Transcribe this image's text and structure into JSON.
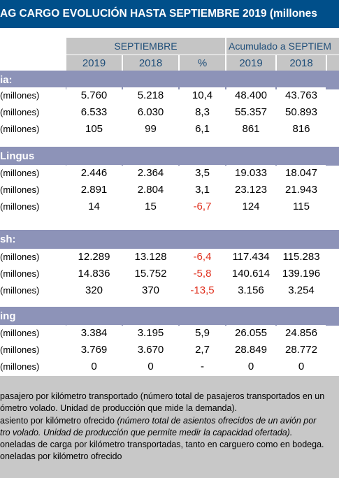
{
  "title": "AG CARGO EVOLUCIÓN HASTA SEPTIEMBRE 2019 (millones",
  "header": {
    "group1": "SEPTIEMBRE",
    "group2": "Acumulado a SEPTIEM",
    "years": [
      "2019",
      "2018",
      "%",
      "2019",
      "2018"
    ]
  },
  "sections": [
    {
      "name": "ia:",
      "rows": [
        {
          "label": "(millones)",
          "values": [
            "5.760",
            "5.218",
            "10,4",
            "48.400",
            "43.763"
          ],
          "neg": false
        },
        {
          "label": "(millones)",
          "values": [
            "6.533",
            "6.030",
            "8,3",
            "55.357",
            "50.893"
          ],
          "neg": false
        },
        {
          "label": "(millones)",
          "values": [
            "105",
            "99",
            "6,1",
            "861",
            "816"
          ],
          "neg": false
        }
      ]
    },
    {
      "name": "Lingus",
      "rows": [
        {
          "label": "(millones)",
          "values": [
            "2.446",
            "2.364",
            "3,5",
            "19.033",
            "18.047"
          ],
          "neg": false
        },
        {
          "label": "(millones)",
          "values": [
            "2.891",
            "2.804",
            "3,1",
            "23.123",
            "21.943"
          ],
          "neg": false
        },
        {
          "label": "(millones)",
          "values": [
            "14",
            "15",
            "-6,7",
            "124",
            "115"
          ],
          "neg": true
        }
      ]
    },
    {
      "name": "sh:",
      "rows": [
        {
          "label": "(millones)",
          "values": [
            "12.289",
            "13.128",
            "-6,4",
            "117.434",
            "115.283"
          ],
          "neg": true
        },
        {
          "label": "(millones)",
          "values": [
            "14.836",
            "15.752",
            "-5,8",
            "140.614",
            "139.196"
          ],
          "neg": true
        },
        {
          "label": "(millones)",
          "values": [
            "320",
            "370",
            "-13,5",
            "3.156",
            "3.254"
          ],
          "neg": true
        }
      ]
    },
    {
      "name": "ing",
      "rows": [
        {
          "label": "(millones)",
          "values": [
            "3.384",
            "3.195",
            "5,9",
            "26.055",
            "24.856"
          ],
          "neg": false
        },
        {
          "label": "(millones)",
          "values": [
            "3.769",
            "3.670",
            "2,7",
            "28.849",
            "28.772"
          ],
          "neg": false
        },
        {
          "label": "(millones)",
          "values": [
            "0",
            "0",
            "-",
            "0",
            "0"
          ],
          "neg": false
        }
      ]
    }
  ],
  "footnotes": {
    "l1": "pasajero por kilómetro transportado (número total de pasajeros transportados en un",
    "l2": "ómetro volado. Unidad de producción que mide la demanda).",
    "l3a": "asiento por kilómetro ofrecido ",
    "l3b": "(número total de asientos ofrecidos de un avión por",
    "l4": "tro volado. Unidad de producción que permite medir la capacidad ofertada).",
    "l5": "oneladas de carga por kilómetro transportadas, tanto en carguero como en bodega.",
    "l6": "oneladas por kilómetro ofrecido"
  },
  "colors": {
    "title_bg": "#004f8a",
    "section_bg": "#8d93b8",
    "header_bg": "#c5c5c5",
    "negative": "#e0301e",
    "footer_bg": "#c8c8c8"
  }
}
